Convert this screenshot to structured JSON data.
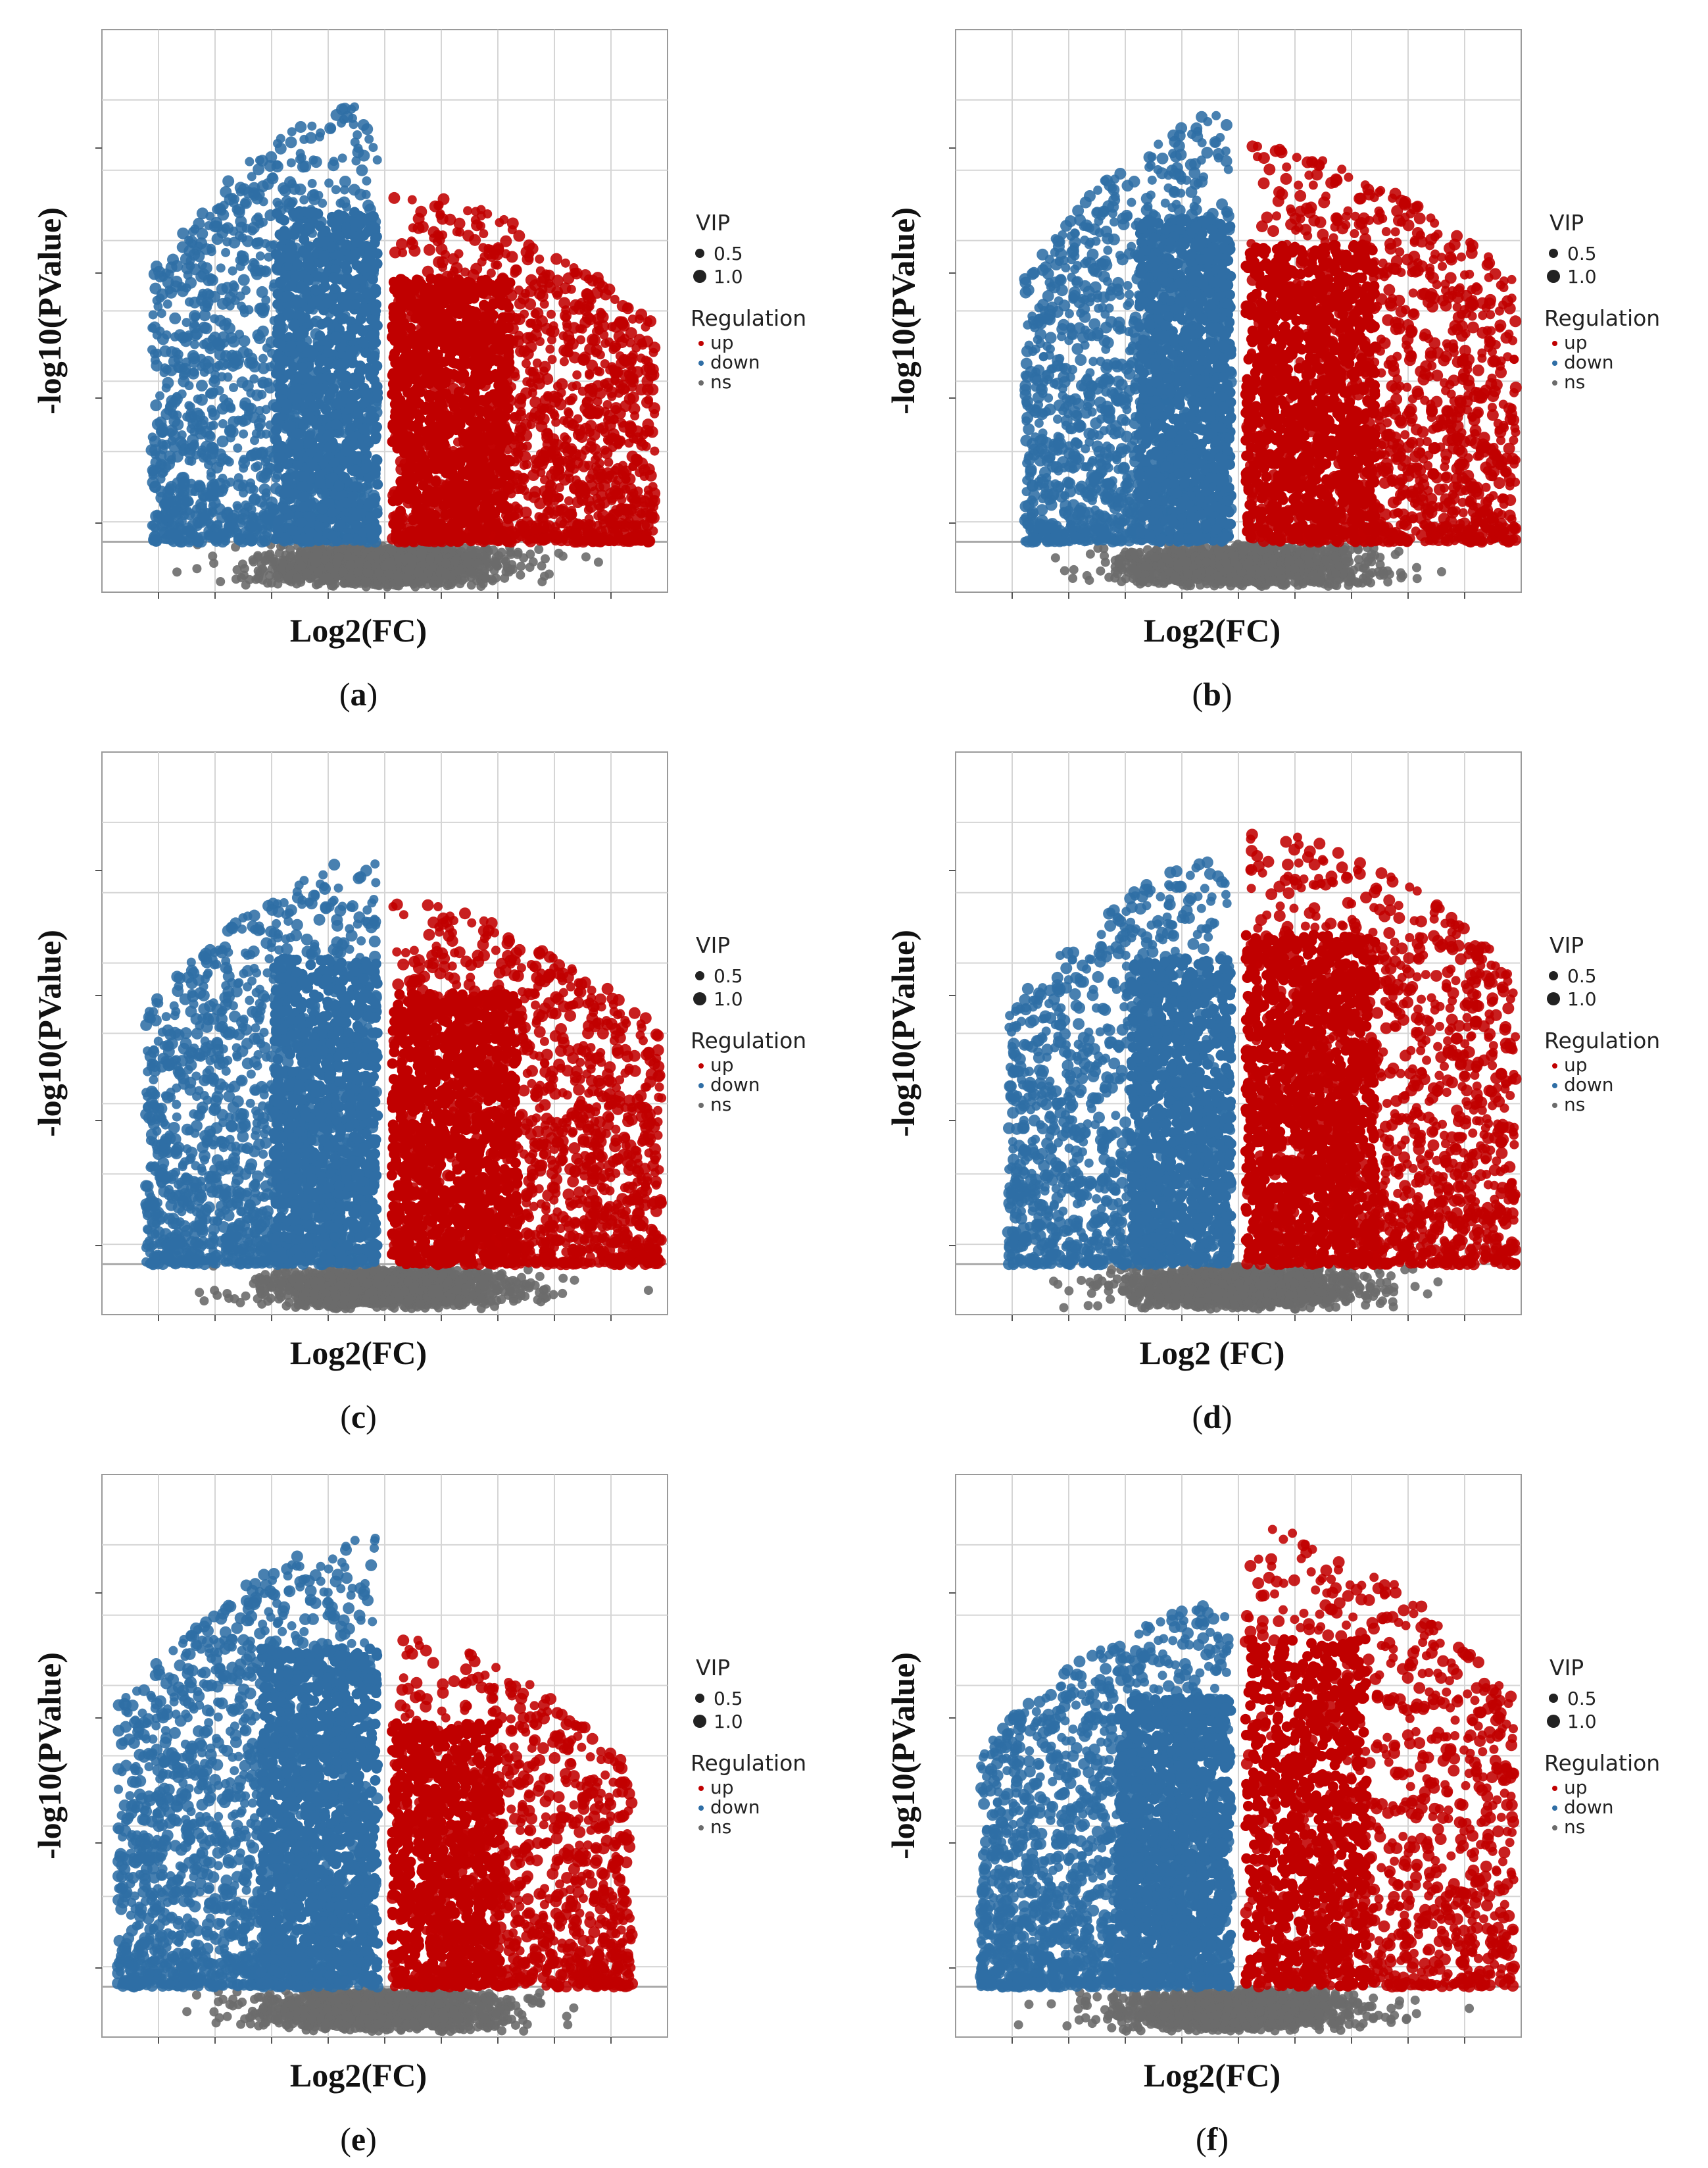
{
  "colors": {
    "up": "#c00000",
    "down": "#2f6ea5",
    "ns": "#6b6b6b",
    "grid": "#d5d5d5",
    "threshold": "#a9a9a9"
  },
  "legend": {
    "vip_title": "VIP",
    "vip_values": [
      "0.5",
      "1.0"
    ],
    "regulation_title": "Regulation",
    "regulation_values": [
      "up",
      "down",
      "ns"
    ]
  },
  "chart_data": [
    {
      "type": "scatter",
      "panel": "a",
      "caption_open": "(",
      "caption_letter": "a",
      "caption_close": ")",
      "xlabel": "Log2(FC)",
      "ylabel": "-log10(PValue)",
      "series": [
        {
          "name": "up",
          "color": "#c00000"
        },
        {
          "name": "down",
          "color": "#2f6ea5"
        },
        {
          "name": "ns",
          "color": "#6b6b6b"
        }
      ],
      "xlim": [
        -10,
        10
      ],
      "ylim": [
        -3,
        45
      ],
      "threshold_y": 1.3,
      "fc_split": [
        -0.2,
        0.2
      ],
      "down_x_min": -8.3,
      "up_x_max": 9.6,
      "down_peak": 41,
      "up_peak": 33,
      "down_mass": 0.5,
      "up_mass": 0.5
    },
    {
      "type": "scatter",
      "panel": "b",
      "caption_open": "(",
      "caption_letter": "b",
      "caption_close": ")",
      "xlabel": "Log2(FC)",
      "ylabel": "-log10(PValue)",
      "series": [
        {
          "name": "up",
          "color": "#c00000"
        },
        {
          "name": "down",
          "color": "#2f6ea5"
        },
        {
          "name": "ns",
          "color": "#6b6b6b"
        }
      ],
      "xlim": [
        -10,
        10
      ],
      "ylim": [
        -3,
        45
      ],
      "threshold_y": 1.3,
      "fc_split": [
        -0.2,
        0.2
      ],
      "down_x_min": -7.6,
      "up_x_max": 10.5,
      "down_peak": 40,
      "up_peak": 37,
      "down_mass": 0.5,
      "up_mass": 0.5
    },
    {
      "type": "scatter",
      "panel": "c",
      "caption_open": "(",
      "caption_letter": "c",
      "caption_close": ")",
      "xlabel": "Log2(FC)",
      "ylabel": "-log10(PValue)",
      "series": [
        {
          "name": "up",
          "color": "#c00000"
        },
        {
          "name": "down",
          "color": "#2f6ea5"
        },
        {
          "name": "ns",
          "color": "#6b6b6b"
        }
      ],
      "xlim": [
        -10,
        10
      ],
      "ylim": [
        -3,
        45
      ],
      "threshold_y": 1.3,
      "fc_split": [
        -0.2,
        0.2
      ],
      "down_x_min": -8.5,
      "up_x_max": 10.2,
      "down_peak": 38,
      "up_peak": 34,
      "down_mass": 0.5,
      "up_mass": 0.5
    },
    {
      "type": "scatter",
      "panel": "d",
      "caption_open": "(",
      "caption_letter": "d",
      "caption_close": ")",
      "xlabel": "Log2 (FC)",
      "ylabel": "-log10(PValue)",
      "series": [
        {
          "name": "up",
          "color": "#c00000"
        },
        {
          "name": "down",
          "color": "#2f6ea5"
        },
        {
          "name": "ns",
          "color": "#6b6b6b"
        }
      ],
      "xlim": [
        -10,
        10
      ],
      "ylim": [
        -3,
        45
      ],
      "threshold_y": 1.3,
      "fc_split": [
        -0.2,
        0.2
      ],
      "down_x_min": -8.2,
      "up_x_max": 10.5,
      "down_peak": 38,
      "up_peak": 41,
      "down_mass": 0.45,
      "up_mass": 0.55
    },
    {
      "type": "scatter",
      "panel": "e",
      "caption_open": "(",
      "caption_letter": "e",
      "caption_close": ")",
      "xlabel": "Log2(FC)",
      "ylabel": "-log10(PValue)",
      "series": [
        {
          "name": "up",
          "color": "#c00000"
        },
        {
          "name": "down",
          "color": "#2f6ea5"
        },
        {
          "name": "ns",
          "color": "#6b6b6b"
        }
      ],
      "xlim": [
        -10,
        10
      ],
      "ylim": [
        -3,
        45
      ],
      "threshold_y": 1.3,
      "fc_split": [
        -0.2,
        0.2
      ],
      "down_x_min": -9.5,
      "up_x_max": 8.8,
      "down_peak": 42,
      "up_peak": 33,
      "down_mass": 0.62,
      "up_mass": 0.38
    },
    {
      "type": "scatter",
      "panel": "f",
      "caption_open": "(",
      "caption_letter": "f",
      "caption_close": ")",
      "xlabel": "Log2(FC)",
      "ylabel": "-log10(PValue)",
      "series": [
        {
          "name": "up",
          "color": "#c00000"
        },
        {
          "name": "down",
          "color": "#2f6ea5"
        },
        {
          "name": "ns",
          "color": "#6b6b6b"
        }
      ],
      "xlim": [
        -10,
        10
      ],
      "ylim": [
        -3,
        45
      ],
      "threshold_y": 1.3,
      "fc_split": [
        -0.2,
        0.2
      ],
      "down_x_min": -9.2,
      "up_x_max": 9.8,
      "down_peak": 36,
      "up_peak": 43,
      "down_mass": 0.62,
      "up_mass": 0.38
    }
  ]
}
